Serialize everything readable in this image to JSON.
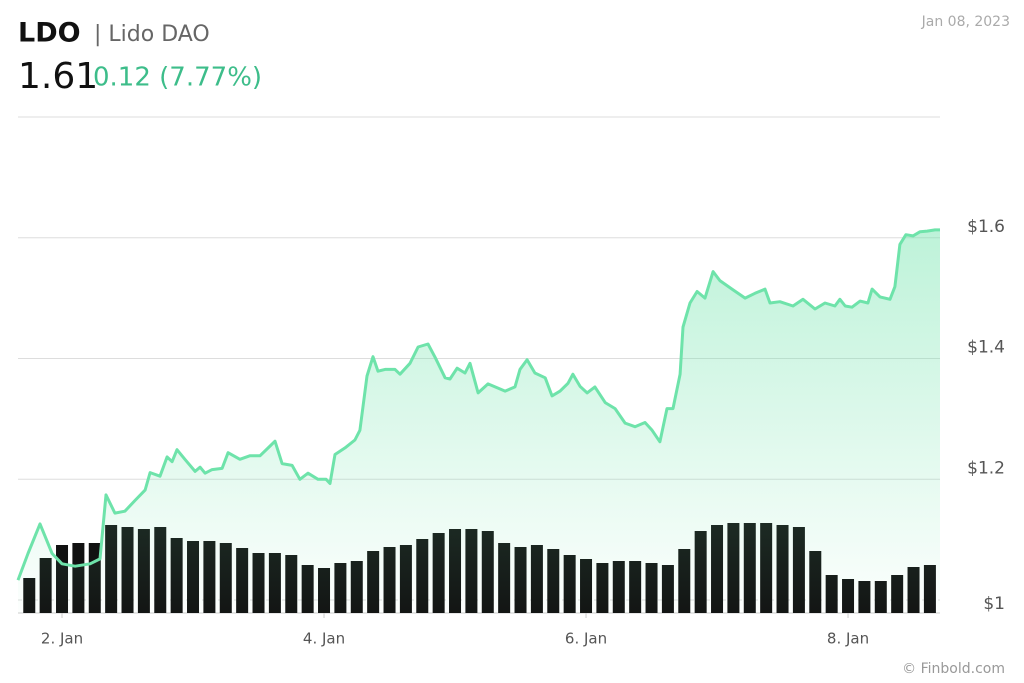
{
  "chart_data": {
    "type": "line",
    "title": "LDO",
    "subtitle": "| Lido DAO",
    "price": "1.61",
    "change": "0.12 (7.77%)",
    "date": "Jan 08, 2023",
    "source": "© Finbold.com",
    "color": "#6ee3aa",
    "change_color": "#3dbd8a",
    "volume_color": "#111111",
    "grid": true,
    "xlim": [
      1.664,
      8.702
    ],
    "xticks": [
      {
        "value": 2,
        "label": "2. Jan"
      },
      {
        "value": 4,
        "label": "4. Jan"
      },
      {
        "value": 6,
        "label": "6. Jan"
      },
      {
        "value": 8,
        "label": "8. Jan"
      }
    ],
    "ylim": [
      1,
      1.8
    ],
    "yticks": [
      {
        "value": 1,
        "label": "$1"
      },
      {
        "value": 1.2,
        "label": "$1.2"
      },
      {
        "value": 1.4,
        "label": "$1.4"
      },
      {
        "value": 1.6,
        "label": "$1.6"
      }
    ],
    "x": [
      1.664,
      1.74,
      1.832,
      1.924,
      2,
      2.1,
      2.214,
      2.29,
      2.336,
      2.404,
      2.48,
      2.558,
      2.634,
      2.672,
      2.748,
      2.802,
      2.84,
      2.878,
      2.938,
      3.016,
      3.054,
      3.092,
      3.146,
      3.222,
      3.268,
      3.358,
      3.436,
      3.512,
      3.588,
      3.626,
      3.68,
      3.756,
      3.816,
      3.878,
      3.954,
      4.016,
      4.046,
      4.084,
      4.16,
      4.236,
      4.274,
      4.328,
      4.374,
      4.412,
      4.466,
      4.542,
      4.58,
      4.656,
      4.718,
      4.794,
      4.848,
      4.924,
      4.962,
      5.016,
      5.076,
      5.114,
      5.176,
      5.252,
      5.306,
      5.382,
      5.458,
      5.496,
      5.55,
      5.61,
      5.688,
      5.74,
      5.802,
      5.862,
      5.9,
      5.954,
      6.008,
      6.068,
      6.146,
      6.222,
      6.298,
      6.374,
      6.45,
      6.504,
      6.564,
      6.618,
      6.664,
      6.718,
      6.74,
      6.794,
      6.848,
      6.908,
      6.97,
      7.022,
      7.114,
      7.214,
      7.29,
      7.366,
      7.404,
      7.48,
      7.58,
      7.656,
      7.748,
      7.824,
      7.9,
      7.938,
      7.978,
      8.03,
      8.092,
      8.152,
      8.184,
      8.244,
      8.32,
      8.358,
      8.396,
      8.442,
      8.496,
      8.55,
      8.604,
      8.664,
      8.702
    ],
    "values": [
      1.033,
      1.077,
      1.126,
      1.077,
      1.06,
      1.056,
      1.06,
      1.068,
      1.174,
      1.144,
      1.147,
      1.165,
      1.182,
      1.211,
      1.205,
      1.237,
      1.229,
      1.249,
      1.233,
      1.213,
      1.22,
      1.21,
      1.216,
      1.218,
      1.244,
      1.233,
      1.239,
      1.239,
      1.255,
      1.263,
      1.226,
      1.223,
      1.2,
      1.21,
      1.2,
      1.2,
      1.193,
      1.241,
      1.252,
      1.265,
      1.281,
      1.371,
      1.403,
      1.379,
      1.382,
      1.382,
      1.374,
      1.392,
      1.419,
      1.424,
      1.402,
      1.368,
      1.366,
      1.384,
      1.376,
      1.392,
      1.343,
      1.358,
      1.353,
      1.346,
      1.353,
      1.382,
      1.398,
      1.376,
      1.368,
      1.338,
      1.346,
      1.359,
      1.374,
      1.354,
      1.343,
      1.353,
      1.327,
      1.317,
      1.293,
      1.287,
      1.294,
      1.281,
      1.262,
      1.317,
      1.317,
      1.374,
      1.452,
      1.492,
      1.511,
      1.5,
      1.544,
      1.529,
      1.515,
      1.5,
      1.508,
      1.515,
      1.492,
      1.494,
      1.487,
      1.498,
      1.482,
      1.492,
      1.487,
      1.498,
      1.487,
      1.485,
      1.495,
      1.492,
      1.515,
      1.502,
      1.498,
      1.519,
      1.589,
      1.605,
      1.603,
      1.61,
      1.611,
      1.613,
      1.613
    ],
    "volume": {
      "x": [
        1.75,
        1.875,
        2,
        2.125,
        2.25,
        2.375,
        2.5,
        2.625,
        2.75,
        2.875,
        3,
        3.125,
        3.25,
        3.375,
        3.5,
        3.625,
        3.75,
        3.875,
        4,
        4.125,
        4.25,
        4.375,
        4.5,
        4.625,
        4.75,
        4.875,
        5,
        5.125,
        5.25,
        5.375,
        5.5,
        5.625,
        5.75,
        5.875,
        6,
        6.125,
        6.25,
        6.375,
        6.5,
        6.625,
        6.75,
        6.875,
        7,
        7.125,
        7.25,
        7.375,
        7.5,
        7.625,
        7.75,
        7.875,
        8,
        8.125,
        8.25,
        8.375,
        8.5,
        8.625
      ],
      "values": [
        35,
        55,
        68,
        70,
        70,
        88,
        86,
        84,
        86,
        75,
        72,
        72,
        70,
        65,
        60,
        60,
        58,
        48,
        45,
        50,
        52,
        62,
        66,
        68,
        74,
        80,
        84,
        84,
        82,
        70,
        66,
        68,
        64,
        58,
        54,
        50,
        52,
        52,
        50,
        48,
        64,
        82,
        88,
        90,
        90,
        90,
        88,
        86,
        62,
        38,
        34,
        32,
        32,
        38,
        46,
        48
      ]
    }
  }
}
